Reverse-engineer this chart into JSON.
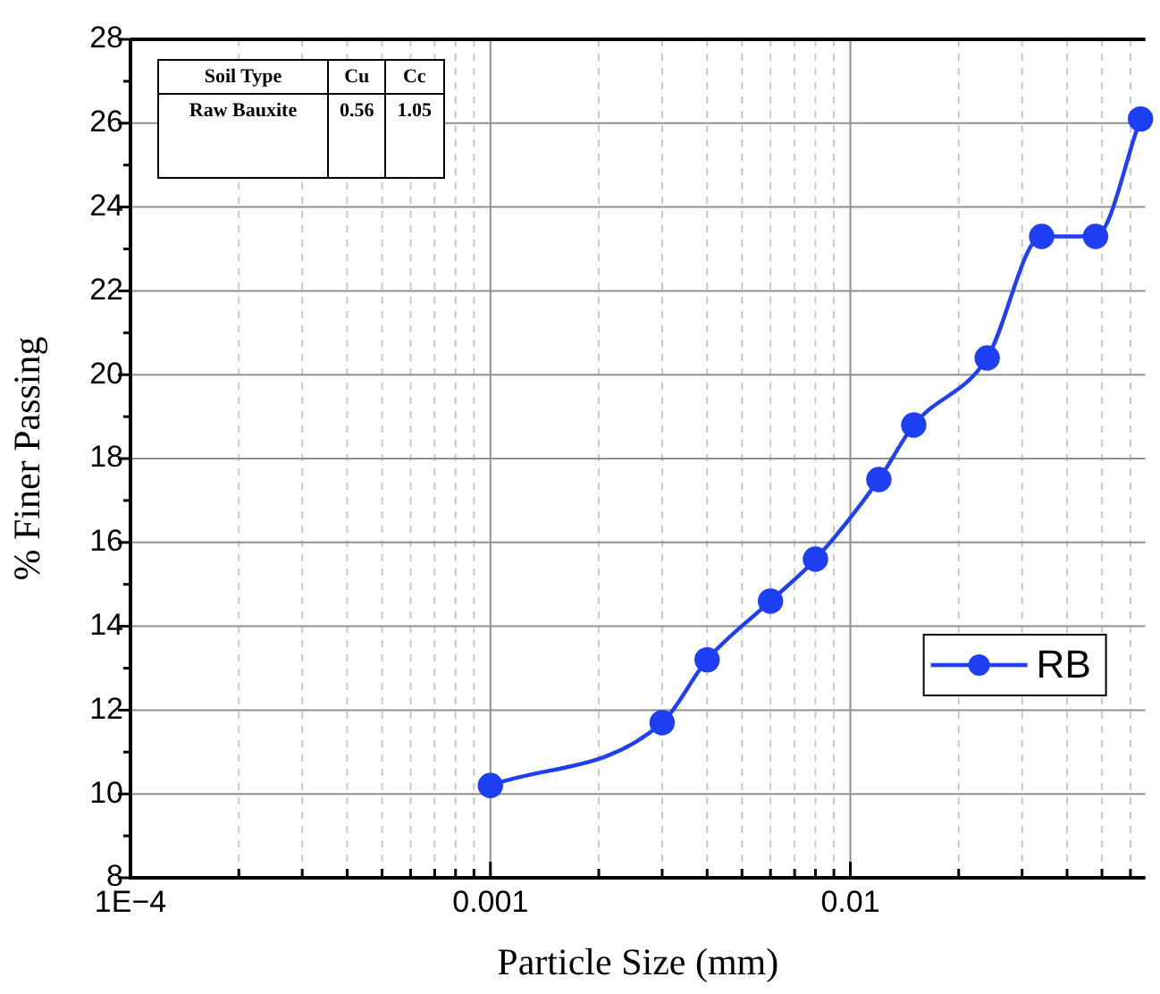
{
  "chart_data": {
    "type": "line",
    "xlabel": "Particle Size (mm)",
    "ylabel": "% Finer Passing",
    "log": "x",
    "x": [
      0.001,
      0.003,
      0.004,
      0.006,
      0.008,
      0.012,
      0.015,
      0.024,
      0.034,
      0.048,
      0.064
    ],
    "series": [
      {
        "name": "RB",
        "color": "#1f3ff5",
        "values": [
          10.2,
          11.7,
          13.2,
          14.6,
          15.6,
          17.5,
          18.8,
          20.4,
          23.3,
          23.3,
          26.1
        ]
      }
    ],
    "xlim": [
      0.0001,
      0.066
    ],
    "ylim": [
      8,
      28
    ],
    "xticks": [
      {
        "value": 0.0001,
        "label": "1E−4"
      },
      {
        "value": 0.0002,
        "label": null
      },
      {
        "value": 0.0003,
        "label": null
      },
      {
        "value": 0.0004,
        "label": null
      },
      {
        "value": 0.0005,
        "label": null
      },
      {
        "value": 0.0006,
        "label": null
      },
      {
        "value": 0.0007,
        "label": null
      },
      {
        "value": 0.0008,
        "label": null
      },
      {
        "value": 0.0009,
        "label": null
      },
      0.001,
      {
        "value": 0.002,
        "label": null
      },
      {
        "value": 0.003,
        "label": null
      },
      {
        "value": 0.004,
        "label": null
      },
      {
        "value": 0.005,
        "label": null
      },
      {
        "value": 0.006,
        "label": null
      },
      {
        "value": 0.007,
        "label": null
      },
      {
        "value": 0.008,
        "label": null
      },
      {
        "value": 0.009,
        "label": null
      },
      0.01,
      {
        "value": 0.02,
        "label": null
      },
      {
        "value": 0.03,
        "label": null
      },
      {
        "value": 0.04,
        "label": null
      },
      {
        "value": 0.05,
        "label": null
      },
      {
        "value": 0.06,
        "label": null
      }
    ],
    "yticks": [
      8,
      {
        "value": 9,
        "label": null
      },
      10,
      {
        "value": 11,
        "label": null
      },
      12,
      {
        "value": 13,
        "label": null
      },
      14,
      {
        "value": 15,
        "label": null
      },
      16,
      {
        "value": 17,
        "label": null
      },
      18,
      {
        "value": 19,
        "label": null
      },
      20,
      {
        "value": 21,
        "label": null
      },
      22,
      {
        "value": 23,
        "label": null
      },
      24,
      {
        "value": 25,
        "label": null
      },
      26,
      {
        "value": 27,
        "label": null
      },
      28
    ],
    "grid": true,
    "legend": "right",
    "marker": "circle",
    "line_style": "solid",
    "annotations": [
      "Soil Type",
      "Cu",
      "Cc",
      "Raw Bauxite",
      "0.56",
      "1.05"
    ]
  }
}
